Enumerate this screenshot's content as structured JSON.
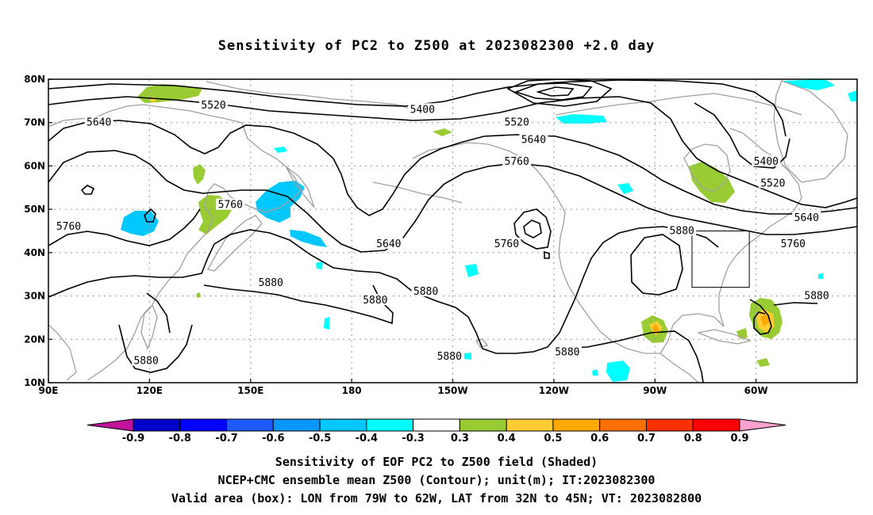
{
  "title": "Sensitivity of PC2 to Z500 at 2023082300 +2.0 day",
  "captions": {
    "line1": "Sensitivity of EOF PC2 to Z500 field (Shaded)",
    "line2": "NCEP+CMC ensemble mean Z500 (Contour); unit(m); IT:2023082300",
    "line3": "Valid area (box): LON from 79W to 62W, LAT from 32N to 45N; VT: 2023082800"
  },
  "map": {
    "lat_range": [
      10,
      80
    ],
    "lon_range_east": [
      90,
      330
    ],
    "lat_ticks": [
      "80N",
      "70N",
      "60N",
      "50N",
      "40N",
      "30N",
      "20N",
      "10N"
    ],
    "lon_ticks": [
      "90E",
      "120E",
      "150E",
      "180",
      "150W",
      "120W",
      "90W",
      "60W"
    ],
    "valid_box": {
      "lon": [
        281,
        298
      ],
      "lat": [
        32,
        45
      ]
    },
    "contour_labels": [
      {
        "text": "5520",
        "lon": 139,
        "lat": 74
      },
      {
        "text": "5400",
        "lon": 201,
        "lat": 73
      },
      {
        "text": "5640",
        "lon": 105,
        "lat": 70
      },
      {
        "text": "5520",
        "lon": 229,
        "lat": 70
      },
      {
        "text": "5640",
        "lon": 234,
        "lat": 66
      },
      {
        "text": "5760",
        "lon": 229,
        "lat": 61
      },
      {
        "text": "5400",
        "lon": 303,
        "lat": 61
      },
      {
        "text": "5520",
        "lon": 305,
        "lat": 56
      },
      {
        "text": "5760",
        "lon": 144,
        "lat": 51
      },
      {
        "text": "5640",
        "lon": 315,
        "lat": 48
      },
      {
        "text": "5760",
        "lon": 96,
        "lat": 46
      },
      {
        "text": "5880",
        "lon": 278,
        "lat": 45
      },
      {
        "text": "5760",
        "lon": 311,
        "lat": 42
      },
      {
        "text": "5640",
        "lon": 191,
        "lat": 42
      },
      {
        "text": "5760",
        "lon": 226,
        "lat": 42
      },
      {
        "text": "5880",
        "lon": 156,
        "lat": 33
      },
      {
        "text": "5880",
        "lon": 187,
        "lat": 29
      },
      {
        "text": "5880",
        "lon": 202,
        "lat": 31
      },
      {
        "text": "5880",
        "lon": 318,
        "lat": 30
      },
      {
        "text": "5880",
        "lon": 209,
        "lat": 16
      },
      {
        "text": "5880",
        "lon": 244,
        "lat": 17
      },
      {
        "text": "5880",
        "lon": 119,
        "lat": 15
      }
    ]
  },
  "colorbar": {
    "labels": [
      "-0.9",
      "-0.8",
      "-0.7",
      "-0.6",
      "-0.5",
      "-0.4",
      "-0.3",
      "0.3",
      "0.4",
      "0.5",
      "0.6",
      "0.7",
      "0.8",
      "0.9"
    ],
    "colors": [
      "#0000c8",
      "#0000ff",
      "#1e5aff",
      "#0a96ff",
      "#00c8ff",
      "#00ffff",
      "#ffffff",
      "#99cc33",
      "#ffcc33",
      "#ffa800",
      "#ff7000",
      "#ff3000",
      "#ff0000"
    ],
    "low_arrow_color": "#c0129a",
    "high_arrow_color": "#ffa0d0"
  }
}
